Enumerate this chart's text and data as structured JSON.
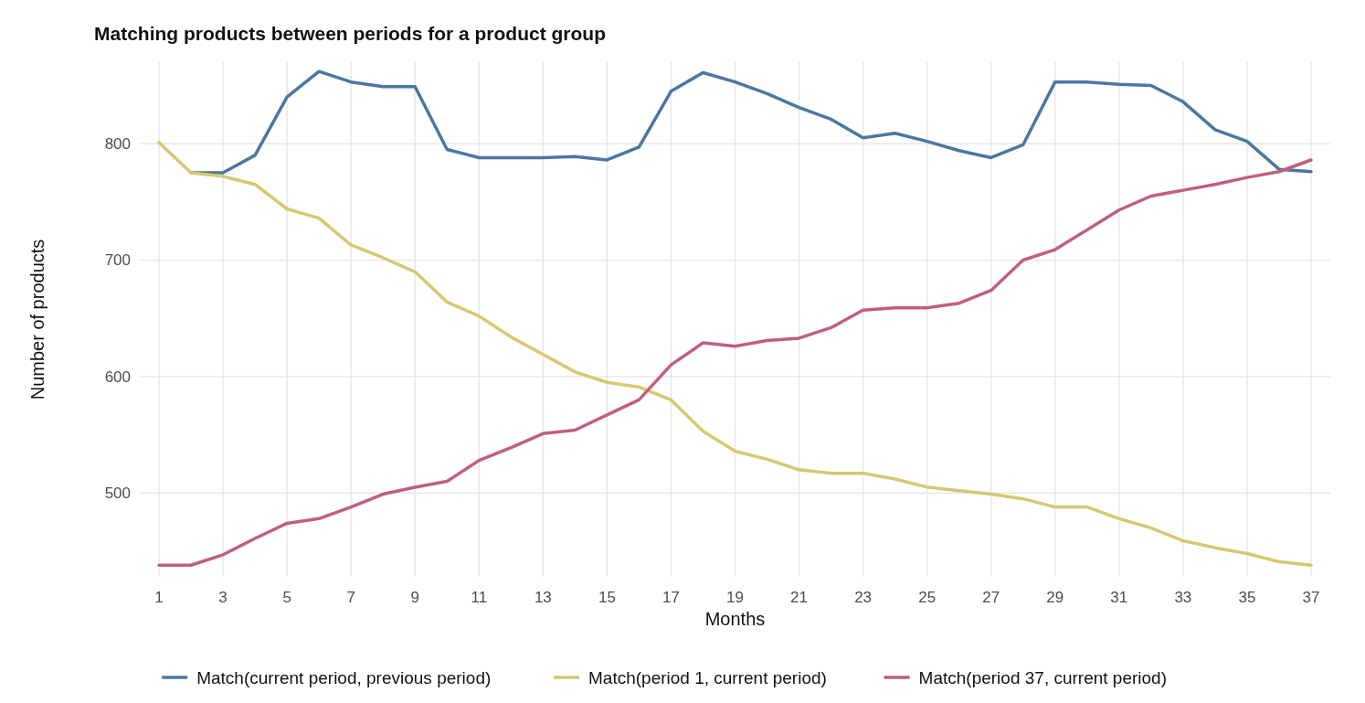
{
  "chart_data": {
    "type": "line",
    "title": "Matching products between periods for a product group",
    "xlabel": "Months",
    "ylabel": "Number of products",
    "x": [
      1,
      2,
      3,
      4,
      5,
      6,
      7,
      8,
      9,
      10,
      11,
      12,
      13,
      14,
      15,
      16,
      17,
      18,
      19,
      20,
      21,
      22,
      23,
      24,
      25,
      26,
      27,
      28,
      29,
      30,
      31,
      32,
      33,
      34,
      35,
      36,
      37
    ],
    "xlim": [
      0.4,
      37.6
    ],
    "xticks": [
      1,
      3,
      5,
      7,
      9,
      11,
      13,
      15,
      17,
      19,
      21,
      23,
      25,
      27,
      29,
      31,
      33,
      35,
      37
    ],
    "ylim": [
      428,
      870
    ],
    "yticks": [
      500,
      600,
      700,
      800
    ],
    "grid": true,
    "legend": "bottom",
    "line_style": "solid",
    "marker": "none",
    "series": [
      {
        "name": "Match(current period, previous period)",
        "color": "#4a78a0",
        "values": [
          null,
          775,
          775,
          790,
          840,
          862,
          853,
          849,
          849,
          795,
          788,
          788,
          788,
          789,
          786,
          797,
          845,
          861,
          853,
          843,
          831,
          821,
          805,
          809,
          802,
          794,
          788,
          799,
          853,
          853,
          851,
          850,
          836,
          812,
          802,
          778,
          776
        ]
      },
      {
        "name": "Match(period 1, current period)",
        "color": "#d6c872",
        "values": [
          801,
          775,
          772,
          765,
          744,
          736,
          713,
          702,
          690,
          664,
          652,
          634,
          619,
          604,
          595,
          591,
          580,
          553,
          536,
          529,
          520,
          517,
          517,
          512,
          505,
          502,
          499,
          495,
          488,
          488,
          478,
          470,
          459,
          453,
          448,
          441,
          438
        ]
      },
      {
        "name": "Match(period 37, current period)",
        "color": "#c0607a",
        "values": [
          438,
          438,
          447,
          461,
          474,
          478,
          488,
          499,
          505,
          510,
          528,
          539,
          551,
          554,
          567,
          580,
          610,
          629,
          626,
          631,
          633,
          642,
          657,
          659,
          659,
          663,
          674,
          700,
          709,
          726,
          743,
          755,
          760,
          765,
          771,
          776,
          786
        ]
      }
    ]
  }
}
